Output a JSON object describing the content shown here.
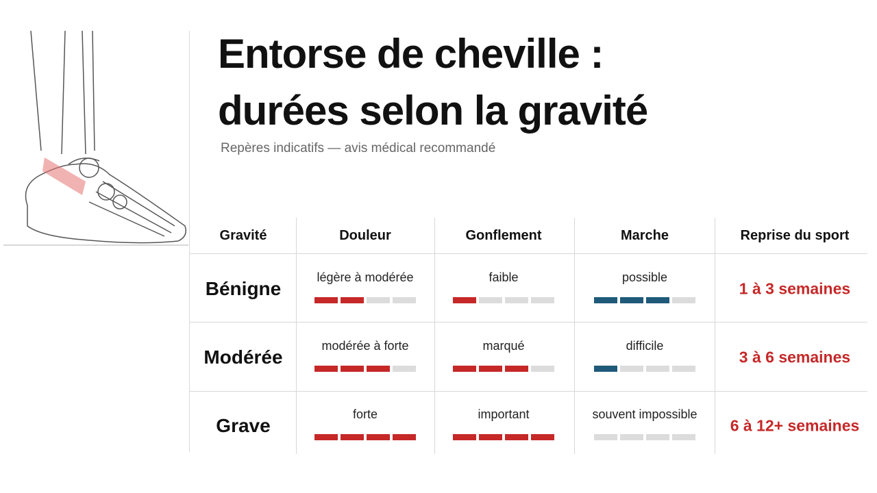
{
  "title_lines": [
    "Entorse de cheville :",
    "durées selon la gravité"
  ],
  "subtitle": "Repères indicatifs — avis médical recommandé",
  "table": {
    "max_level": 4,
    "empty_color": "#dcdcdc",
    "headers": [
      {
        "label": "Gravité"
      },
      {
        "label": "Douleur",
        "color": "#c62828"
      },
      {
        "label": "Gonflement",
        "color": "#c62828"
      },
      {
        "label": "Marche",
        "color": "#1f5a7a"
      },
      {
        "label": "Reprise du sport"
      }
    ],
    "rows": [
      {
        "severity": "Bénigne",
        "cells": [
          {
            "text": "légère à modérée",
            "level": 2
          },
          {
            "text": "faible",
            "level": 1
          },
          {
            "text": "possible",
            "level": 3
          }
        ],
        "return": "1 à 3 semaines"
      },
      {
        "severity": "Modérée",
        "cells": [
          {
            "text": "modérée à forte",
            "level": 3
          },
          {
            "text": "marqué",
            "level": 3
          },
          {
            "text": "difficile",
            "level": 1
          }
        ],
        "return": "3 à 6 semaines"
      },
      {
        "severity": "Grave",
        "cells": [
          {
            "text": "forte",
            "level": 4
          },
          {
            "text": "important",
            "level": 4
          },
          {
            "text": "souvent impossible",
            "level": 0
          }
        ],
        "return": "6 à 12+ semaines"
      }
    ]
  }
}
